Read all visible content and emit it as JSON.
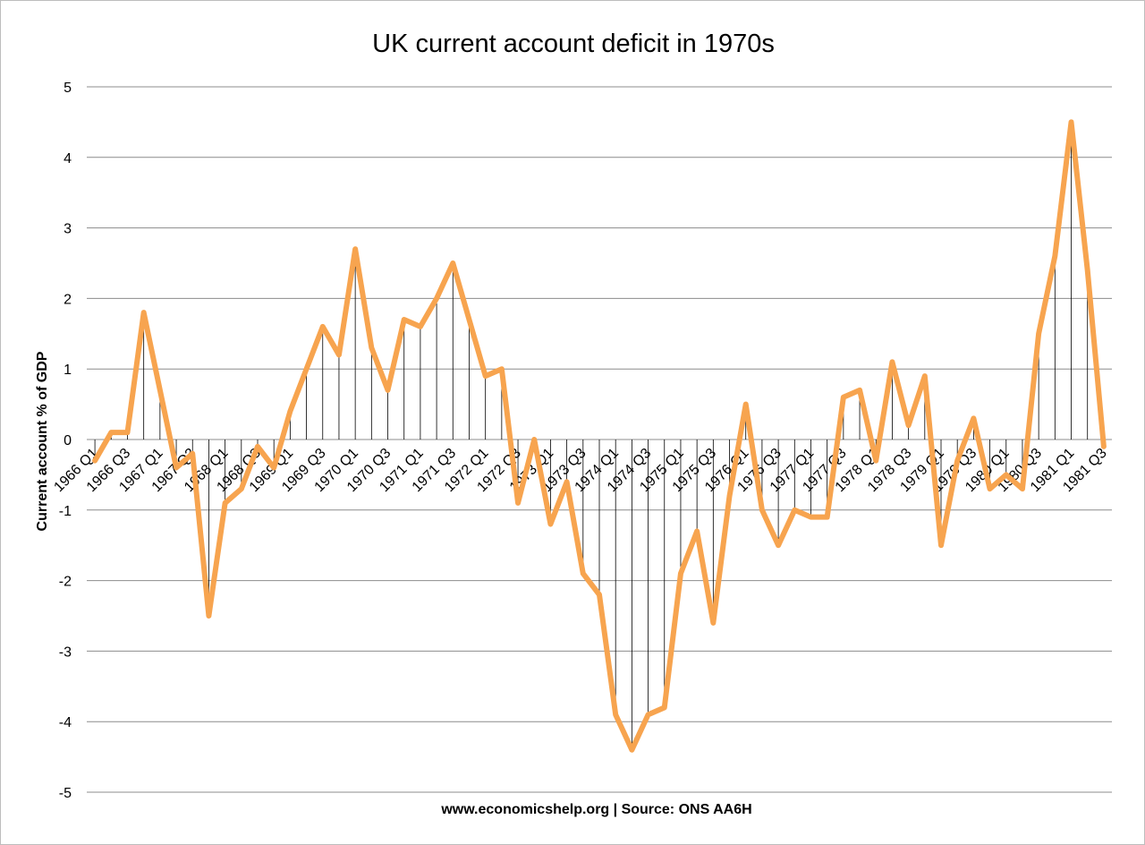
{
  "chart_data": {
    "type": "line",
    "title": "UK current account deficit in 1970s",
    "ylabel": "Current account % of GDP",
    "xlabel": "",
    "source": "www.economicshelp.org | Source: ONS AA6H",
    "ylim": [
      -5,
      5
    ],
    "yticks": [
      5,
      4,
      3,
      2,
      1,
      0,
      -1,
      -2,
      -3,
      -4,
      -5
    ],
    "grid": true,
    "drop_lines": true,
    "line_color": "#F7A44F",
    "x": [
      "1966 Q1",
      "1966 Q2",
      "1966 Q3",
      "1966 Q4",
      "1967 Q1",
      "1967 Q2",
      "1967 Q3",
      "1967 Q4",
      "1968 Q1",
      "1968 Q2",
      "1968 Q3",
      "1968 Q4",
      "1969 Q1",
      "1969 Q2",
      "1969 Q3",
      "1969 Q4",
      "1970 Q1",
      "1970 Q2",
      "1970 Q3",
      "1970 Q4",
      "1971 Q1",
      "1971 Q2",
      "1971 Q3",
      "1971 Q4",
      "1972 Q1",
      "1972 Q2",
      "1972 Q3",
      "1972 Q4",
      "1973 Q1",
      "1973 Q2",
      "1973 Q3",
      "1973 Q4",
      "1974 Q1",
      "1974 Q2",
      "1974 Q3",
      "1974 Q4",
      "1975 Q1",
      "1975 Q2",
      "1975 Q3",
      "1975 Q4",
      "1976 Q1",
      "1976 Q2",
      "1976 Q3",
      "1976 Q4",
      "1977 Q1",
      "1977 Q2",
      "1977 Q3",
      "1977 Q4",
      "1978 Q1",
      "1978 Q2",
      "1978 Q3",
      "1978 Q4",
      "1979 Q1",
      "1979 Q2",
      "1979 Q3",
      "1979 Q4",
      "1980 Q1",
      "1980 Q2",
      "1980 Q3",
      "1980 Q4",
      "1981 Q1",
      "1981 Q2",
      "1981 Q3"
    ],
    "tick_labels": [
      "1966 Q1",
      "1966 Q3",
      "1967 Q1",
      "1967 Q3",
      "1968 Q1",
      "1968 Q3",
      "1969 Q1",
      "1969 Q3",
      "1970 Q1",
      "1970 Q3",
      "1971 Q1",
      "1971 Q3",
      "1972 Q1",
      "1972 Q3",
      "1973 Q1",
      "1973 Q3",
      "1974 Q1",
      "1974 Q3",
      "1975 Q1",
      "1975 Q3",
      "1976 Q1",
      "1976 Q3",
      "1977 Q1",
      "1977 Q3",
      "1978 Q1",
      "1978 Q3",
      "1979 Q1",
      "1979 Q3",
      "1980 Q1",
      "1980 Q3",
      "1981 Q1",
      "1981 Q3"
    ],
    "series": [
      {
        "name": "Current account % of GDP",
        "values": [
          -0.3,
          0.1,
          0.1,
          1.8,
          0.7,
          -0.4,
          -0.2,
          -2.5,
          -0.9,
          -0.7,
          -0.1,
          -0.4,
          0.4,
          1.0,
          1.6,
          1.2,
          2.7,
          1.3,
          0.7,
          1.7,
          1.6,
          2.0,
          2.5,
          1.7,
          0.9,
          1.0,
          -0.9,
          0.0,
          -1.2,
          -0.6,
          -1.9,
          -2.2,
          -3.9,
          -4.4,
          -3.9,
          -3.8,
          -1.9,
          -1.3,
          -2.6,
          -0.8,
          0.5,
          -1.0,
          -1.5,
          -1.0,
          -1.1,
          -1.1,
          0.6,
          0.7,
          -0.3,
          1.1,
          0.2,
          0.9,
          -1.5,
          -0.3,
          0.3,
          -0.7,
          -0.5,
          -0.7,
          1.5,
          2.6,
          4.5,
          2.4,
          -0.1
        ]
      }
    ]
  }
}
